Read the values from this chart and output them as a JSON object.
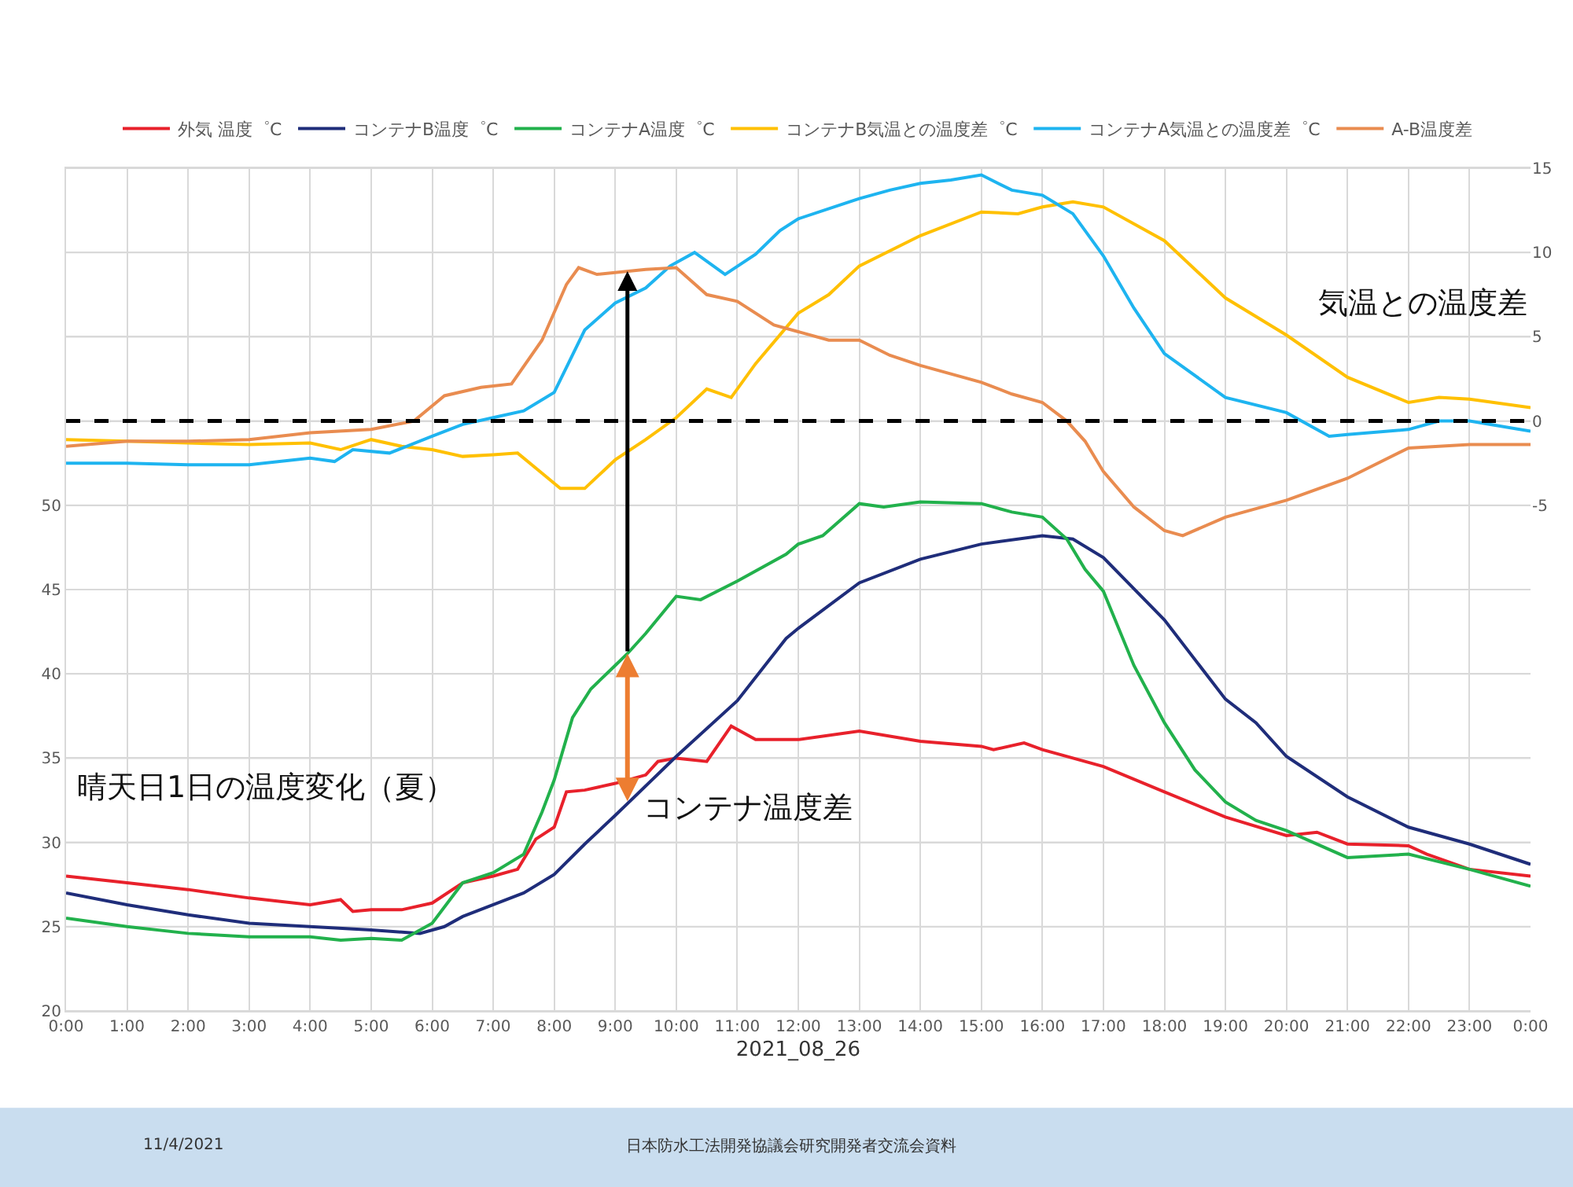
{
  "chart_data": {
    "type": "line",
    "xlabel": "2021_08_26",
    "xlim": [
      0,
      24
    ],
    "xticks": [
      {
        "value": 0,
        "label": "0:00"
      },
      {
        "value": 1,
        "label": "1:00"
      },
      {
        "value": 2,
        "label": "2:00"
      },
      {
        "value": 3,
        "label": "3:00"
      },
      {
        "value": 4,
        "label": "4:00"
      },
      {
        "value": 5,
        "label": "5:00"
      },
      {
        "value": 6,
        "label": "6:00"
      },
      {
        "value": 7,
        "label": "7:00"
      },
      {
        "value": 8,
        "label": "8:00"
      },
      {
        "value": 9,
        "label": "9:00"
      },
      {
        "value": 10,
        "label": "10:00"
      },
      {
        "value": 11,
        "label": "11:00"
      },
      {
        "value": 12,
        "label": "12:00"
      },
      {
        "value": 13,
        "label": "13:00"
      },
      {
        "value": 14,
        "label": "14:00"
      },
      {
        "value": 15,
        "label": "15:00"
      },
      {
        "value": 16,
        "label": "16:00"
      },
      {
        "value": 17,
        "label": "17:00"
      },
      {
        "value": 18,
        "label": "18:00"
      },
      {
        "value": 19,
        "label": "19:00"
      },
      {
        "value": 20,
        "label": "20:00"
      },
      {
        "value": 21,
        "label": "21:00"
      },
      {
        "value": 22,
        "label": "22:00"
      },
      {
        "value": 23,
        "label": "23:00"
      },
      {
        "value": 24,
        "label": "0:00"
      }
    ],
    "ylim": [
      20,
      70
    ],
    "yticks": [
      20,
      25,
      30,
      35,
      40,
      45,
      50,
      {
        "value": 55,
        "label": null
      },
      {
        "value": 60,
        "label": null
      },
      {
        "value": 65,
        "label": null
      },
      {
        "value": 70,
        "label": null
      }
    ],
    "y2lim": [
      -35,
      15
    ],
    "y2ticks": [
      -5,
      0,
      5,
      10,
      15
    ],
    "grid": true,
    "legend": "top",
    "marker": "none",
    "line_style": "solid",
    "series": [
      {
        "name": "外気 温度゜C",
        "color": "#e8212b",
        "x": [
          0,
          1,
          2,
          3,
          4,
          4.5,
          4.7,
          5,
          5.5,
          6,
          6.5,
          7,
          7.4,
          7.7,
          8,
          8.2,
          8.5,
          9,
          9.5,
          9.7,
          10,
          10.5,
          10.9,
          11.3,
          12,
          13,
          14,
          15,
          15.2,
          15.7,
          16,
          17,
          18,
          19,
          20,
          20.5,
          21,
          22,
          22.3,
          23,
          24
        ],
        "values": [
          28.0,
          27.6,
          27.2,
          26.7,
          26.3,
          26.6,
          25.9,
          26.0,
          26.0,
          26.4,
          27.6,
          28.0,
          28.4,
          30.2,
          30.9,
          33.0,
          33.1,
          33.5,
          34.0,
          34.8,
          35.0,
          34.8,
          36.9,
          36.1,
          36.1,
          36.6,
          36.0,
          35.7,
          35.5,
          35.9,
          35.5,
          34.5,
          33.0,
          31.5,
          30.4,
          30.6,
          29.9,
          29.8,
          29.3,
          28.4,
          28.0
        ]
      },
      {
        "name": "コンテナB温度゜C",
        "color": "#1f2d7a",
        "x": [
          0,
          1,
          2,
          3,
          4,
          5,
          5.8,
          6.2,
          6.5,
          7,
          7.5,
          8,
          8.5,
          9,
          10,
          11,
          11.8,
          12,
          13,
          14,
          15,
          16,
          16.5,
          17,
          18,
          19,
          19.5,
          20,
          21,
          22,
          23,
          24
        ],
        "values": [
          27.0,
          26.3,
          25.7,
          25.2,
          25.0,
          24.8,
          24.6,
          25.0,
          25.6,
          26.3,
          27.0,
          28.1,
          29.9,
          31.6,
          35.1,
          38.4,
          42.1,
          42.7,
          45.4,
          46.8,
          47.7,
          48.2,
          48.0,
          46.9,
          43.2,
          38.5,
          37.1,
          35.1,
          32.7,
          30.9,
          29.9,
          28.7
        ]
      },
      {
        "name": "コンテナA温度゜C",
        "color": "#22b14c",
        "x": [
          0,
          1,
          2,
          3,
          4,
          4.5,
          5,
          5.5,
          6,
          6.5,
          7,
          7.5,
          7.8,
          8,
          8.3,
          8.6,
          9,
          9.2,
          9.5,
          10,
          10.4,
          11,
          11.8,
          12,
          12.4,
          13,
          13.4,
          14,
          15,
          15.5,
          16,
          16.4,
          16.7,
          17,
          17.5,
          18,
          18.5,
          19,
          19.5,
          20,
          21,
          22,
          23,
          24
        ],
        "values": [
          25.5,
          25.0,
          24.6,
          24.4,
          24.4,
          24.2,
          24.3,
          24.2,
          25.2,
          27.6,
          28.2,
          29.3,
          31.8,
          33.7,
          37.4,
          39.1,
          40.5,
          41.2,
          42.4,
          44.6,
          44.4,
          45.5,
          47.1,
          47.7,
          48.2,
          50.1,
          49.9,
          50.2,
          50.1,
          49.6,
          49.3,
          48.0,
          46.2,
          44.9,
          40.5,
          37.1,
          34.3,
          32.4,
          31.3,
          30.7,
          29.1,
          29.3,
          28.4,
          27.4
        ]
      },
      {
        "name": "コンテナB気温との温度差゜C",
        "color": "#ffc000",
        "axis": "y2",
        "x": [
          0,
          1,
          2,
          3,
          4,
          4.5,
          5,
          5.5,
          6,
          6.5,
          7,
          7.4,
          7.8,
          8.1,
          8.5,
          9,
          9.5,
          10,
          10.5,
          10.9,
          11.3,
          12,
          12.5,
          13,
          14,
          15,
          15.6,
          16,
          16.5,
          17,
          18,
          19,
          20,
          21,
          22,
          22.5,
          23,
          24
        ],
        "values": [
          -1.1,
          -1.2,
          -1.3,
          -1.4,
          -1.3,
          -1.7,
          -1.1,
          -1.5,
          -1.7,
          -2.1,
          -2.0,
          -1.9,
          -3.1,
          -4.0,
          -4.0,
          -2.3,
          -1.1,
          0.2,
          1.9,
          1.4,
          3.4,
          6.4,
          7.5,
          9.2,
          11.0,
          12.4,
          12.3,
          12.7,
          13.0,
          12.7,
          10.7,
          7.3,
          5.1,
          2.6,
          1.1,
          1.4,
          1.3,
          0.8
        ]
      },
      {
        "name": "コンテナA気温との温度差゜C",
        "color": "#1eb4f0",
        "axis": "y2",
        "x": [
          0,
          1,
          2,
          3,
          4,
          4.4,
          4.7,
          5.3,
          6,
          6.5,
          7,
          7.5,
          8,
          8.5,
          9,
          9.5,
          9.9,
          10.3,
          10.8,
          11.3,
          11.7,
          12,
          13,
          13.5,
          14,
          14.5,
          15,
          15.5,
          16,
          16.5,
          17,
          17.5,
          18,
          19,
          20,
          20.7,
          21,
          22,
          22.5,
          23,
          24
        ],
        "values": [
          -2.5,
          -2.5,
          -2.6,
          -2.6,
          -2.2,
          -2.4,
          -1.7,
          -1.9,
          -0.9,
          -0.2,
          0.2,
          0.6,
          1.7,
          5.4,
          7.0,
          7.9,
          9.2,
          10.0,
          8.7,
          9.9,
          11.3,
          12.0,
          13.2,
          13.7,
          14.1,
          14.3,
          14.6,
          13.7,
          13.4,
          12.3,
          9.8,
          6.7,
          4.0,
          1.4,
          0.5,
          -0.9,
          -0.8,
          -0.5,
          0.0,
          0.0,
          -0.6
        ]
      },
      {
        "name": "A-B温度差",
        "color": "#e98c50",
        "axis": "y2",
        "x": [
          0,
          1,
          2,
          3,
          4,
          5,
          5.7,
          6.2,
          6.8,
          7.3,
          7.8,
          8.2,
          8.4,
          8.7,
          9.5,
          10,
          10.5,
          11,
          11.6,
          12,
          12.5,
          13,
          13.5,
          14,
          15,
          15.5,
          16,
          16.4,
          16.7,
          17,
          17.5,
          18,
          18.3,
          19,
          20,
          21,
          22,
          23,
          24
        ],
        "values": [
          -1.5,
          -1.2,
          -1.2,
          -1.1,
          -0.7,
          -0.5,
          0.0,
          1.5,
          2.0,
          2.2,
          4.8,
          8.1,
          9.1,
          8.7,
          9.0,
          9.1,
          7.5,
          7.1,
          5.7,
          5.3,
          4.8,
          4.8,
          3.9,
          3.3,
          2.3,
          1.6,
          1.1,
          0.0,
          -1.2,
          -3.0,
          -5.1,
          -6.5,
          -6.8,
          -5.7,
          -4.7,
          -3.4,
          -1.6,
          -1.4,
          -1.4
        ]
      }
    ],
    "ref_lines": [
      {
        "axis": "y2",
        "value": 0,
        "color": "#000000",
        "line_style": "dashed"
      }
    ],
    "annotations": [
      "気温との温度差",
      "晴天日1日の温度変化（夏）",
      {
        "text": "コンテナ温度差",
        "x": 9.2,
        "y": 32
      },
      "11/4/2021",
      "日本防水工法開発協議会研究開発者交流会資料"
    ]
  }
}
